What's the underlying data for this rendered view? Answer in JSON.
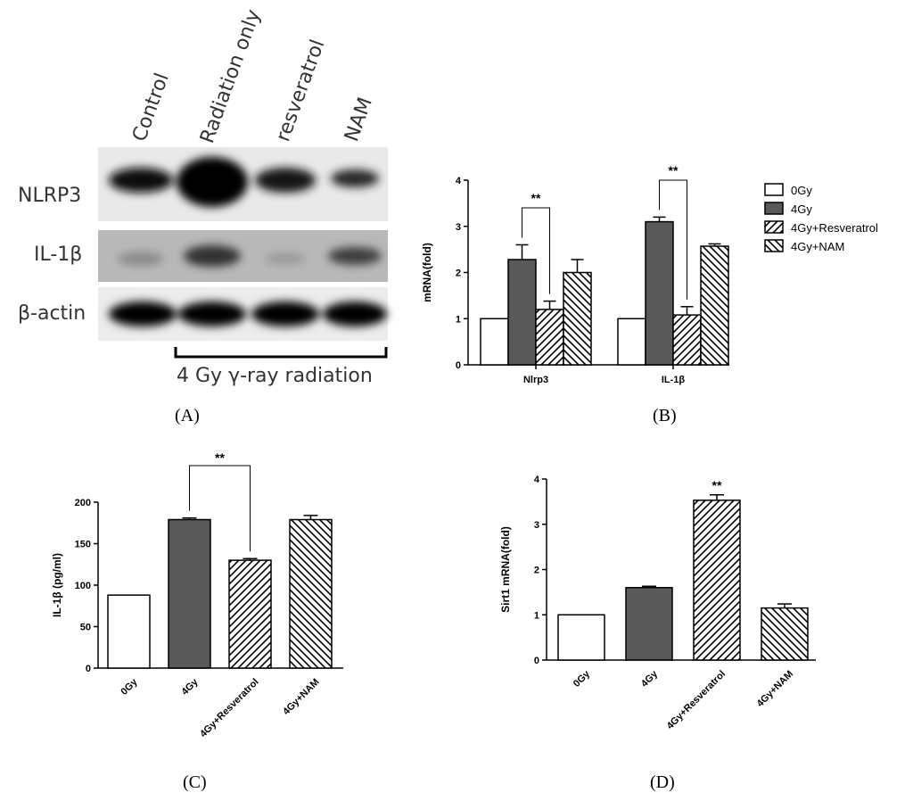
{
  "panel_labels": {
    "a": "(A)",
    "b": "(B)",
    "c": "(C)",
    "d": "(D)"
  },
  "blot": {
    "lanes": [
      "Control",
      "Radiation only",
      "resveratrol",
      "NAM"
    ],
    "rows": [
      "NLRP3",
      "IL-1β",
      "β-actin"
    ],
    "radiation_label": "4 Gy γ-ray radiation"
  },
  "significance": "**",
  "chart_data": [
    {
      "type": "bar",
      "panel": "B",
      "ylabel": "mRNA(fold)",
      "ylim": [
        0,
        4
      ],
      "yticks": [
        "0",
        "1",
        "2",
        "3",
        "4"
      ],
      "categories": [
        "Nlrp3",
        "IL-1β"
      ],
      "series": [
        {
          "name": "0Gy",
          "values": [
            1.0,
            1.0
          ],
          "errors": [
            0,
            0
          ],
          "fill": "white"
        },
        {
          "name": "4Gy",
          "values": [
            2.28,
            3.1
          ],
          "errors": [
            0.32,
            0.1
          ],
          "fill": "#595959"
        },
        {
          "name": "4Gy+Resveratrol",
          "values": [
            1.2,
            1.08
          ],
          "errors": [
            0.18,
            0.18
          ],
          "fill": "hatch-fwd"
        },
        {
          "name": "4Gy+NAM",
          "values": [
            2.0,
            2.57
          ],
          "errors": [
            0.28,
            0.05
          ],
          "fill": "hatch-back"
        }
      ],
      "legend": "right"
    },
    {
      "type": "bar",
      "panel": "C",
      "ylabel": "IL-1β (pg/ml)",
      "ylim": [
        0,
        200
      ],
      "yticks": [
        "0",
        "50",
        "100",
        "150",
        "200"
      ],
      "categories": [
        "0Gy",
        "4Gy",
        "4Gy+Resveratrol",
        "4Gy+NAM"
      ],
      "values": [
        88,
        179,
        130,
        179
      ],
      "errors": [
        0,
        2,
        2,
        5
      ],
      "fills": [
        "white",
        "#595959",
        "hatch-fwd",
        "hatch-back"
      ]
    },
    {
      "type": "bar",
      "panel": "D",
      "ylabel": "Sirt1 mRNA(fold)",
      "ylim": [
        0,
        4
      ],
      "yticks": [
        "0",
        "1",
        "2",
        "3",
        "4"
      ],
      "categories": [
        "0Gy",
        "4Gy",
        "4Gy+Resveratrol",
        "4Gy+NAM"
      ],
      "values": [
        1.0,
        1.6,
        3.53,
        1.15
      ],
      "errors": [
        0,
        0.03,
        0.12,
        0.09
      ],
      "fills": [
        "white",
        "#595959",
        "hatch-fwd",
        "hatch-back"
      ]
    }
  ]
}
